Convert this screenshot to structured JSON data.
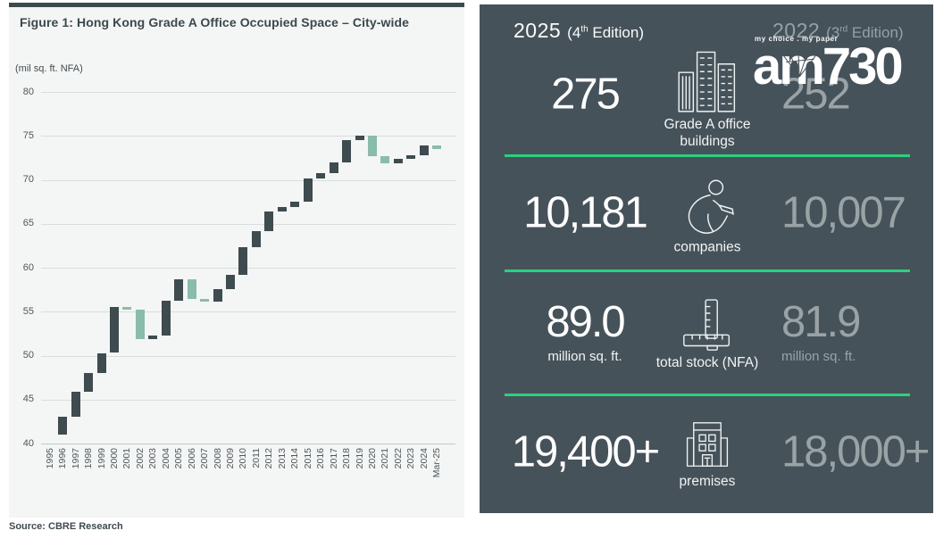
{
  "figure": {
    "title": "Figure 1:  Hong Kong Grade A Office Occupied Space – City-wide",
    "source": "Source: CBRE Research"
  },
  "chart_data": {
    "type": "bar",
    "subtype": "waterfall",
    "title": "Hong Kong Grade A Office Occupied Space – City-wide",
    "ylabel": "(mil sq. ft. NFA)",
    "xlabel": "",
    "ylim": [
      40,
      80
    ],
    "y_ticks": [
      80,
      75,
      70,
      65,
      60,
      55,
      50,
      45,
      40
    ],
    "grid": "horizontal",
    "legend": "none",
    "categories": [
      "1995",
      "1996",
      "1997",
      "1998",
      "1999",
      "2000",
      "2001",
      "2002",
      "2003",
      "2004",
      "2005",
      "2006",
      "2007",
      "2008",
      "2009",
      "2010",
      "2011",
      "2012",
      "2013",
      "2014",
      "2015",
      "2016",
      "2017",
      "2018",
      "2019",
      "2020",
      "2021",
      "2022",
      "2023",
      "2024",
      "Mar-25"
    ],
    "baseline_start_value": 41.0,
    "colors": {
      "increase": "#3e4b4f",
      "decrease": "#8abcab"
    },
    "bars": [
      {
        "label": "1996",
        "from": 41.0,
        "to": 43.0
      },
      {
        "label": "1997",
        "from": 43.0,
        "to": 45.9
      },
      {
        "label": "1998",
        "from": 45.9,
        "to": 48.0
      },
      {
        "label": "1999",
        "from": 48.0,
        "to": 50.3
      },
      {
        "label": "2000",
        "from": 50.4,
        "to": 55.5
      },
      {
        "label": "2001",
        "from": 55.5,
        "to": 55.2
      },
      {
        "label": "2002",
        "from": 55.2,
        "to": 51.9
      },
      {
        "label": "2003",
        "from": 51.9,
        "to": 52.3
      },
      {
        "label": "2004",
        "from": 52.3,
        "to": 56.2
      },
      {
        "label": "2005",
        "from": 56.2,
        "to": 58.7
      },
      {
        "label": "2006",
        "from": 58.7,
        "to": 56.4
      },
      {
        "label": "2007",
        "from": 56.4,
        "to": 56.1
      },
      {
        "label": "2008",
        "from": 56.1,
        "to": 57.6
      },
      {
        "label": "2009",
        "from": 57.6,
        "to": 59.2
      },
      {
        "label": "2010",
        "from": 59.2,
        "to": 62.3
      },
      {
        "label": "2011",
        "from": 62.3,
        "to": 64.2
      },
      {
        "label": "2012",
        "from": 64.2,
        "to": 66.4
      },
      {
        "label": "2013",
        "from": 66.4,
        "to": 66.9
      },
      {
        "label": "2014",
        "from": 66.9,
        "to": 67.5
      },
      {
        "label": "2015",
        "from": 67.5,
        "to": 70.2
      },
      {
        "label": "2016",
        "from": 70.2,
        "to": 70.8
      },
      {
        "label": "2017",
        "from": 70.8,
        "to": 72.0
      },
      {
        "label": "2018",
        "from": 72.0,
        "to": 74.5
      },
      {
        "label": "2019",
        "from": 74.5,
        "to": 75.0
      },
      {
        "label": "2020",
        "from": 75.0,
        "to": 72.7
      },
      {
        "label": "2021",
        "from": 72.7,
        "to": 71.9
      },
      {
        "label": "2022",
        "from": 71.9,
        "to": 72.4
      },
      {
        "label": "2023",
        "from": 72.4,
        "to": 72.8
      },
      {
        "label": "2024",
        "from": 72.8,
        "to": 73.9
      },
      {
        "label": "Mar-25",
        "from": 73.9,
        "to": 73.5
      }
    ]
  },
  "stats": {
    "panel_bg": "#46525a",
    "divider_color": "#2bd17d",
    "gray_text_color": "#99a3a6",
    "header_left": {
      "year": "2025",
      "edition_pre": "(4",
      "edition_sup": "th",
      "edition_post": " Edition)"
    },
    "header_right": {
      "year": "2022",
      "edition_pre": "(3",
      "edition_sup": "rd",
      "edition_post": " Edition)"
    },
    "logo": {
      "tagline": "my choice . my paper",
      "text": "am730"
    },
    "rows": [
      {
        "value_2025": "275",
        "value_2022": "252",
        "label": "Grade A office buildings",
        "icon": "office-towers-icon"
      },
      {
        "value_2025": "10,181",
        "value_2022": "10,007",
        "label": "companies",
        "icon": "company-person-icon"
      },
      {
        "value_2025": "89.0",
        "unit_2025": "million sq. ft.",
        "value_2022": "81.9",
        "unit_2022": "million sq. ft.",
        "label": "total stock (NFA)",
        "icon": "ruler-icon"
      },
      {
        "value_2025": "19,400+",
        "value_2022": "18,000+",
        "label": "premises",
        "icon": "premises-icon"
      }
    ]
  }
}
